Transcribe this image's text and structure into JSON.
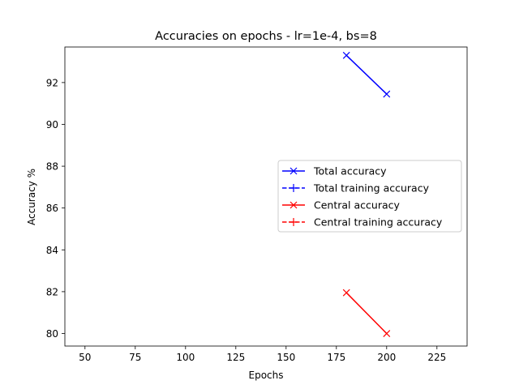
{
  "chart_data": {
    "type": "line",
    "title": "Accuracies on epochs - lr=1e-4, bs=8",
    "xlabel": "Epochs",
    "ylabel": "Accuracy %",
    "xlim": [
      40,
      240
    ],
    "ylim": [
      79.4,
      93.7
    ],
    "xticks": [
      50,
      75,
      100,
      125,
      150,
      175,
      200,
      225
    ],
    "yticks": [
      80,
      82,
      84,
      86,
      88,
      90,
      92
    ],
    "grid": false,
    "legend_position": "center-right",
    "series": [
      {
        "name": "Total accuracy",
        "color": "#0000ff",
        "linestyle": "solid",
        "marker": "x",
        "x": [
          180,
          200
        ],
        "y": [
          93.3,
          91.45
        ]
      },
      {
        "name": "Total training accuracy",
        "color": "#0000ff",
        "linestyle": "dashed",
        "marker": "+",
        "x": [],
        "y": []
      },
      {
        "name": "Central accuracy",
        "color": "#ff0000",
        "linestyle": "solid",
        "marker": "x",
        "x": [
          180,
          200
        ],
        "y": [
          81.95,
          80.0
        ]
      },
      {
        "name": "Central training accuracy",
        "color": "#ff0000",
        "linestyle": "dashed",
        "marker": "+",
        "x": [],
        "y": []
      }
    ]
  }
}
